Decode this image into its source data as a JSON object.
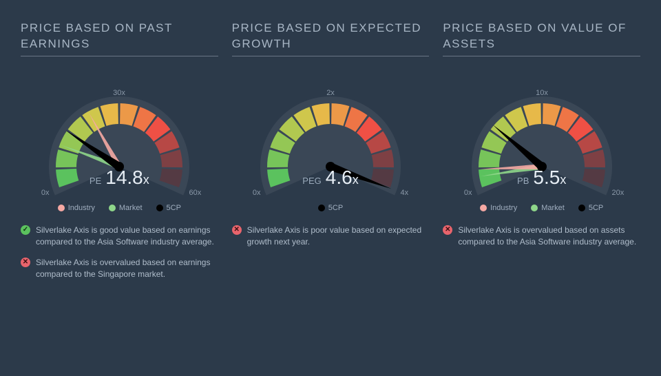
{
  "background_color": "#2c3a4a",
  "title_color": "#a8b6c5",
  "title_fontsize": 17,
  "gauge_colors": [
    "#5bc25e",
    "#77c45a",
    "#94c755",
    "#b1c850",
    "#cfc74c",
    "#e7b949",
    "#ec9948",
    "#ee7546",
    "#ef5045",
    "#b74845",
    "#7e4044",
    "#543a43"
  ],
  "gauge_start_deg": -200,
  "gauge_end_deg": 20,
  "legend_colors": {
    "industry": "#f5a8a3",
    "market": "#8fd68a",
    "main": "#000000"
  },
  "legend_labels": {
    "industry": "Industry",
    "market": "Market",
    "main": "5CP"
  },
  "columns": [
    {
      "title": "PRICE BASED ON PAST EARNINGS",
      "metric": "PE",
      "value": 14.8,
      "suffix": "x",
      "scale_min": 0,
      "scale_max": 60,
      "tick_mid": 30,
      "ticks": [
        "0x",
        "30x",
        "60x"
      ],
      "needle_main": 14.8,
      "needle_industry": 22,
      "needle_market": 11,
      "show_industry": true,
      "show_market": true,
      "notes": [
        {
          "status": "pass",
          "text": "Silverlake Axis is good value based on earnings compared to the Asia Software industry average."
        },
        {
          "status": "fail",
          "text": "Silverlake Axis is overvalued based on earnings compared to the Singapore market."
        }
      ]
    },
    {
      "title": "PRICE BASED ON EXPECTED GROWTH",
      "metric": "PEG",
      "value": 4.6,
      "suffix": "x",
      "scale_min": 0,
      "scale_max": 4,
      "tick_mid": 2,
      "ticks": [
        "0x",
        "2x",
        "4x"
      ],
      "needle_main": 4.0,
      "show_industry": false,
      "show_market": false,
      "notes": [
        {
          "status": "fail",
          "text": "Silverlake Axis is poor value based on expected growth next year."
        }
      ]
    },
    {
      "title": "PRICE BASED ON VALUE OF ASSETS",
      "metric": "PB",
      "value": 5.5,
      "suffix": "x",
      "scale_min": 0,
      "scale_max": 20,
      "tick_mid": 10,
      "ticks": [
        "0x",
        "10x",
        "20x"
      ],
      "needle_main": 5.5,
      "needle_industry": 1.6,
      "needle_market": 1.0,
      "show_industry": true,
      "show_market": true,
      "notes": [
        {
          "status": "fail",
          "text": "Silverlake Axis is overvalued based on assets compared to the Asia Software industry average."
        }
      ]
    }
  ]
}
